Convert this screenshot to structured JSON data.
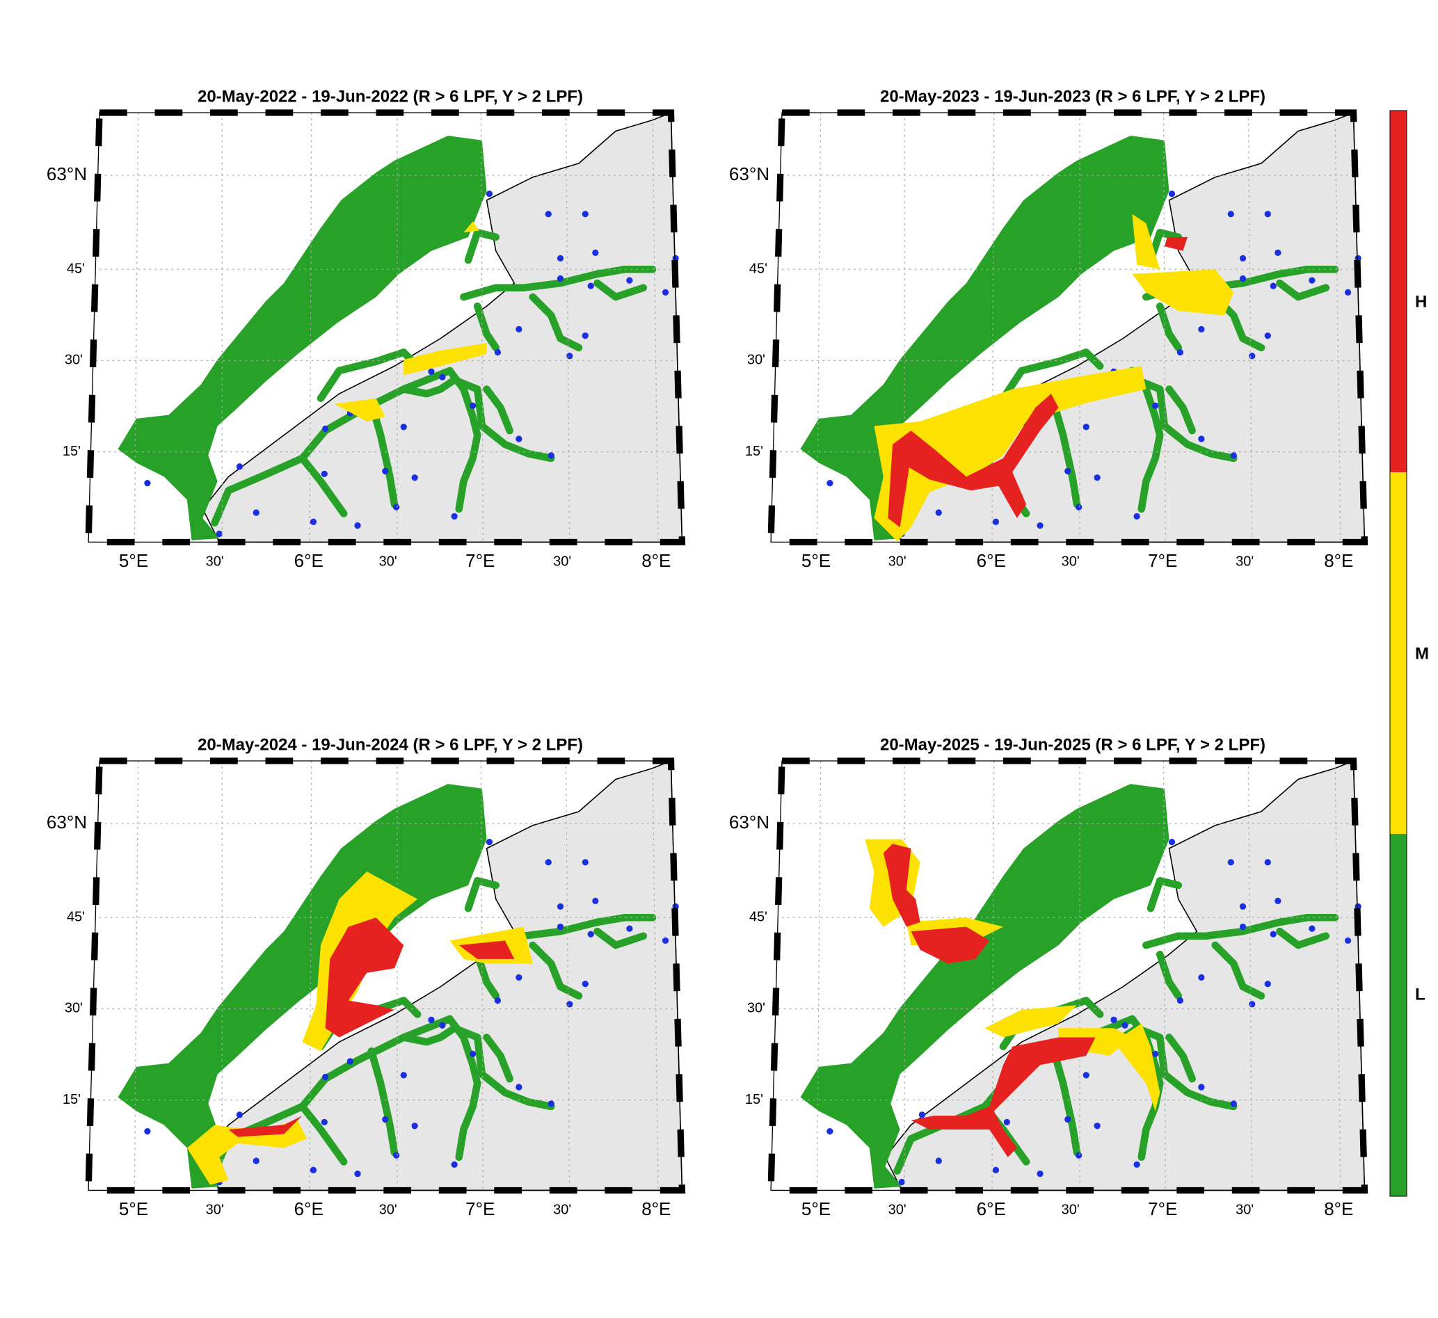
{
  "panels": [
    {
      "title": "20-May-2022  - 19-Jun-2022  (R > 6 LPF, Y > 2 LPF)"
    },
    {
      "title": "20-May-2023  - 19-Jun-2023  (R > 6 LPF, Y > 2 LPF)"
    },
    {
      "title": "20-May-2024  - 19-Jun-2024  (R > 6 LPF, Y > 2 LPF)"
    },
    {
      "title": "20-May-2025  - 19-Jun-2025  (R > 6 LPF, Y > 2 LPF)"
    }
  ],
  "lon_labels": [
    "5°E",
    "30'",
    "6°E",
    "30'",
    "7°E",
    "30'",
    "8°E"
  ],
  "lat_labels": [
    "63°N",
    "45'",
    "30'",
    "15'"
  ],
  "colorbar": {
    "labels": [
      "H",
      "M",
      "L"
    ]
  }
}
